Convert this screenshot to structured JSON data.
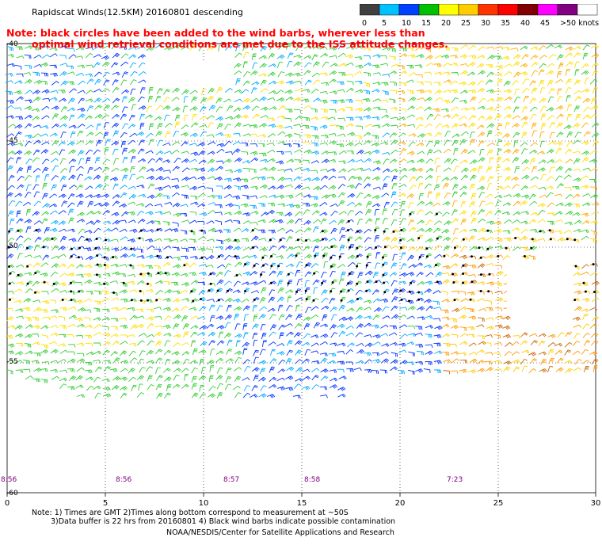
{
  "title": "Rapidscat Winds(12.5KM) 20160801 descending",
  "note_line1": "Note: black circles have been added to the wind barbs, wherever less than",
  "note_line2": "optimal wind retrieval conditions are met due to the ISS attitude changes.",
  "colorbar": {
    "colors": [
      "#404040",
      "#00c0ff",
      "#0040ff",
      "#00c000",
      "#ffff00",
      "#ffcc00",
      "#ff3300",
      "#ff0000",
      "#800000",
      "#ff00ff",
      "#800080",
      "#ffffff"
    ],
    "labels": [
      "0",
      "5",
      "10",
      "15",
      "20",
      "25",
      "30",
      "35",
      "40",
      "45",
      ">50 knots"
    ]
  },
  "lat_labels": [
    "-40",
    "-45",
    "-50",
    "-55",
    "-60"
  ],
  "lon_labels": [
    "0",
    "5",
    "10",
    "15",
    "20",
    "25",
    "30"
  ],
  "time_labels": [
    "8:56",
    "8:56",
    "8:57",
    "8:58",
    "7:23"
  ],
  "footer": {
    "line1": "Note: 1) Times are GMT 2)Times along bottom correspond to measurement at ~50S",
    "line2": "3)Data buffer is 22 hrs from 20160801 4) Black wind barbs indicate possible contamination",
    "line3": "NOAA/NESDIS/Center for Satellite Applications and Research"
  }
}
